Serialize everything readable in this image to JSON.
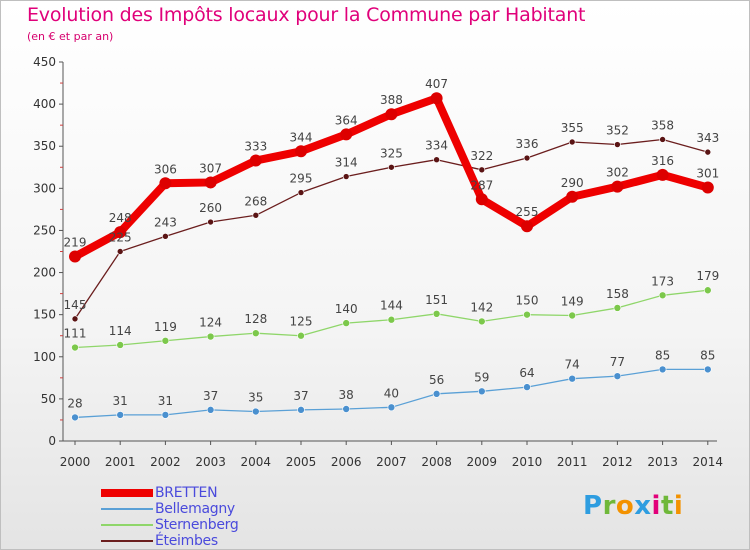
{
  "brand": {
    "text": "Proxiti",
    "letters": [
      "P",
      "r",
      "o",
      "x",
      "i",
      "t",
      "i"
    ],
    "letter_colors": [
      "#2e9de0",
      "#6fb83a",
      "#f39200",
      "#2e9de0",
      "#e2007a",
      "#6fb83a",
      "#f39200"
    ]
  },
  "chart_data": {
    "type": "line",
    "title": "Evolution des Impôts locaux pour la Commune par Habitant",
    "subtitle": "(en € et par an)",
    "xlabel": "",
    "ylabel": "",
    "ylim": [
      0,
      450
    ],
    "yticks": [
      0,
      50,
      100,
      150,
      200,
      250,
      300,
      350,
      400,
      450
    ],
    "grid": false,
    "legend_position": "bottom-left",
    "categories": [
      "2000",
      "2001",
      "2002",
      "2003",
      "2004",
      "2005",
      "2006",
      "2007",
      "2008",
      "2009",
      "2010",
      "2011",
      "2012",
      "2013",
      "2014"
    ],
    "series": [
      {
        "name": "Éteimbes",
        "color": "#6b1e1e",
        "marker": "#5a1414",
        "stroke": 1.3,
        "markerR": 3,
        "values": [
          145,
          225,
          243,
          260,
          268,
          295,
          314,
          325,
          334,
          322,
          336,
          355,
          352,
          358,
          343
        ]
      },
      {
        "name": "Sternenberg",
        "color": "#8fd66a",
        "marker": "#7cc84b",
        "stroke": 1.3,
        "markerR": 3.5,
        "values": [
          111,
          114,
          119,
          124,
          128,
          125,
          140,
          144,
          151,
          142,
          150,
          149,
          158,
          173,
          179
        ]
      },
      {
        "name": "Bellemagny",
        "color": "#5aa0d6",
        "marker": "#4a90cf",
        "stroke": 1.3,
        "markerR": 3.5,
        "values": [
          28,
          31,
          31,
          37,
          35,
          37,
          38,
          40,
          56,
          59,
          64,
          74,
          77,
          85,
          85
        ]
      },
      {
        "name": "BRETTEN",
        "color": "#ee0000",
        "marker": "#dd0000",
        "stroke": 8,
        "markerR": 6,
        "values": [
          219,
          248,
          306,
          307,
          333,
          344,
          364,
          388,
          407,
          287,
          255,
          290,
          302,
          316,
          301
        ]
      }
    ],
    "legend_order": [
      "BRETTEN",
      "Bellemagny",
      "Sternenberg",
      "Éteimbes"
    ]
  }
}
